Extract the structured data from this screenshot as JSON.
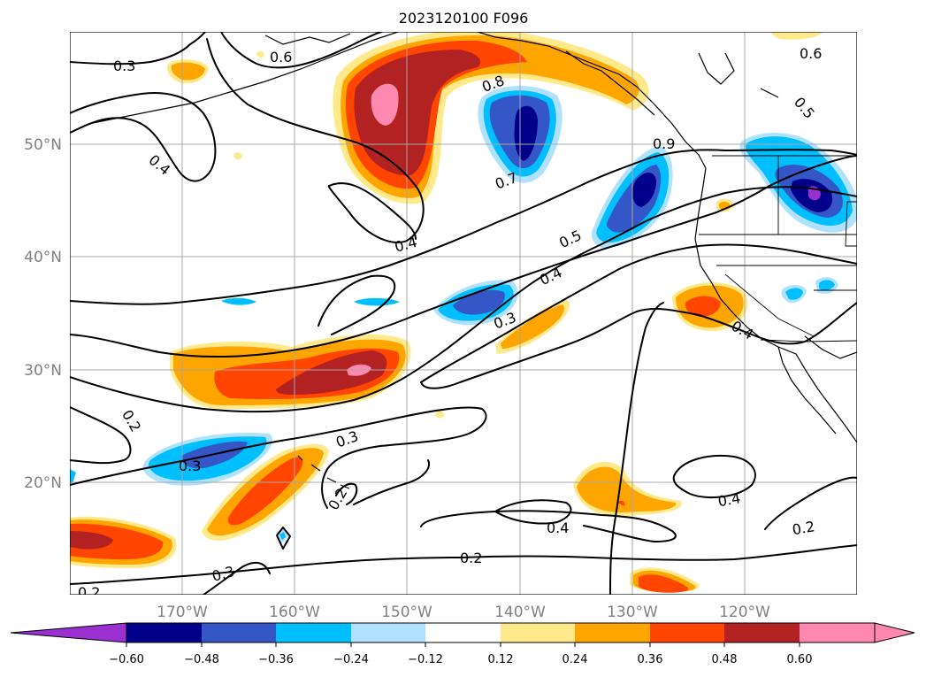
{
  "title": "2023120100 F096",
  "lat_labels": [
    "50°N",
    "40°N",
    "30°N",
    "20°N"
  ],
  "lon_labels": [
    "170°W",
    "160°W",
    "150°W",
    "140°W",
    "130°W",
    "120°W"
  ],
  "contour_labels": [
    "0.3",
    "0.6",
    "0.4",
    "0.8",
    "0.7",
    "0.9",
    "0.6",
    "0.5",
    "0.4",
    "0.5",
    "0.4",
    "0.3",
    "0.4",
    "0.4",
    "0.2",
    "0.3",
    "0.3",
    "0.2",
    "0.4",
    "0.2",
    "0.2",
    "0.3",
    "0.2",
    "0.2"
  ],
  "colorbar": {
    "tick_labels": [
      "−0.60",
      "−0.48",
      "−0.36",
      "−0.24",
      "−0.12",
      "0.12",
      "0.24",
      "0.36",
      "0.48",
      "0.60"
    ],
    "colors": [
      "#9b30d0",
      "#00008b",
      "#3556c6",
      "#00bfff",
      "#b0e2ff",
      "#ffffff",
      "#ffe98a",
      "#ffa500",
      "#ff4500",
      "#b22222",
      "#ff88b0"
    ]
  },
  "colors": {
    "contour": "#000000",
    "grid": "#a8a8a8",
    "axis_label": "#808080"
  },
  "icons": [
    "colorbar-extend-min-arrow",
    "colorbar-extend-max-arrow"
  ]
}
